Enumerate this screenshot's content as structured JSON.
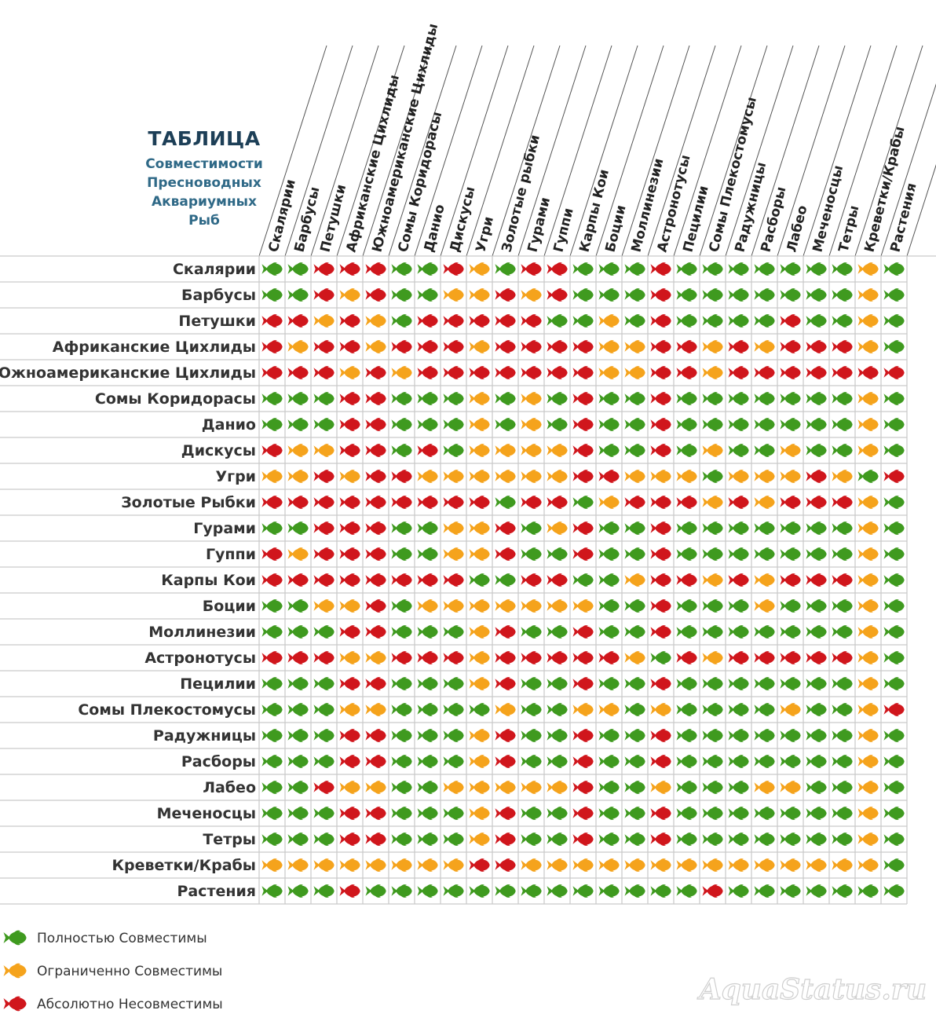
{
  "title": {
    "main": "ТАБЛИЦА",
    "sub": [
      "Совместимости",
      "Пресноводных",
      "Аквариумных",
      "Рыб"
    ]
  },
  "colors": {
    "full": "#3f9a1f",
    "limited": "#f5a31c",
    "none": "#d0161c",
    "grid": "#c9c9c9"
  },
  "legend": [
    {
      "code": "G",
      "label": "Полностью Совместимы"
    },
    {
      "code": "O",
      "label": "Ограниченно  Совместимы"
    },
    {
      "code": "R",
      "label": "Абсолютно  Несовместимы"
    }
  ],
  "watermark": "AquaStatus.ru",
  "chart_data": {
    "type": "table",
    "species": [
      "Скалярии",
      "Барбусы",
      "Петушки",
      "Африканские Цихлиды",
      "Южноамериканские Цихлиды",
      "Сомы Коридорасы",
      "Данио",
      "Дискусы",
      "Угри",
      "Золотые Рыбки",
      "Гурами",
      "Гуппи",
      "Карпы Кои",
      "Боции",
      "Моллинезии",
      "Астронотусы",
      "Пецилии",
      "Сомы Плекостомусы",
      "Радужницы",
      "Расборы",
      "Лабео",
      "Меченосцы",
      "Тетры",
      "Креветки/Крабы",
      "Растения"
    ],
    "columns": [
      "Скалярии",
      "Барбусы",
      "Петушки",
      "Африканские Цихлиды",
      "Южноамериканские Цихлиды",
      "Сомы Коридорасы",
      "Данио",
      "Дискусы",
      "Угри",
      "Золотые рыбки",
      "Гурами",
      "Гуппи",
      "Карпы Кои",
      "Боции",
      "Моллинезии",
      "Астронотусы",
      "Пецилии",
      "Сомы Плекостомусы",
      "Радужницы",
      "Расборы",
      "Лабео",
      "Меченосцы",
      "Тетры",
      "Креветки/Крабы",
      "Растения"
    ],
    "legend_codes": {
      "G": "Полностью Совместимы",
      "O": "Ограниченно Совместимы",
      "R": "Абсолютно Несовместимы"
    },
    "matrix": [
      "GGRRRGGROGRRGGGRGGGGGGGOG",
      "GGRORGGOORORGGGRGGGGGGGOG",
      "RROROGRRRRRGGOGRGGGGRGGOG",
      "RORRORRRORRRROORRORORRROG",
      "RRRORORRRRRRROORRORRRRRRR",
      "GGGRRGGGOGOGRGGRGGGGGGGOG",
      "GGGRRGGGOGOGRGGRGGGGGGGOG",
      "ROORRGRGOOOORGGRGOGGOGGOG",
      "OORORROOOOOORROOOGOOOROGR",
      "RRRRRRRRRGRRGORRRORORRROG",
      "GGRRRGGOORGORGGRGGGGGGGOG",
      "RORRRGGOORGGRGGRGGGGGGGOG",
      "RRRRRRRRGGRRGGORRORORRROG",
      "GGOORGOOOOOOOGGRGGGOGGGOG",
      "GGGRRGGGORGGRGGRGGGGGGGOG",
      "RRROORRRORRRRROGRORRRRROG",
      "GGGRRGGGORGGRGGRGGGGGGGOG",
      "GGGOOGGGGOGGOOGOGGGGOGGOR",
      "GGGRRGGGORGGRGGRGGGGGGGOG",
      "GGGRRGGGORGGRGGRGGGGGGGOG",
      "GGROOGGOOOOORGGOGGGOOGGOG",
      "GGGRRGGGORGGRGGRGGGGGGGOG",
      "GGGRRGGGORGGRGGRGGGGGGGOG",
      "OOOOOOOORROOOOOOOOOOOOOOG",
      "GGGRGGGGGGGGGGGGGRGGGGGGG"
    ]
  }
}
